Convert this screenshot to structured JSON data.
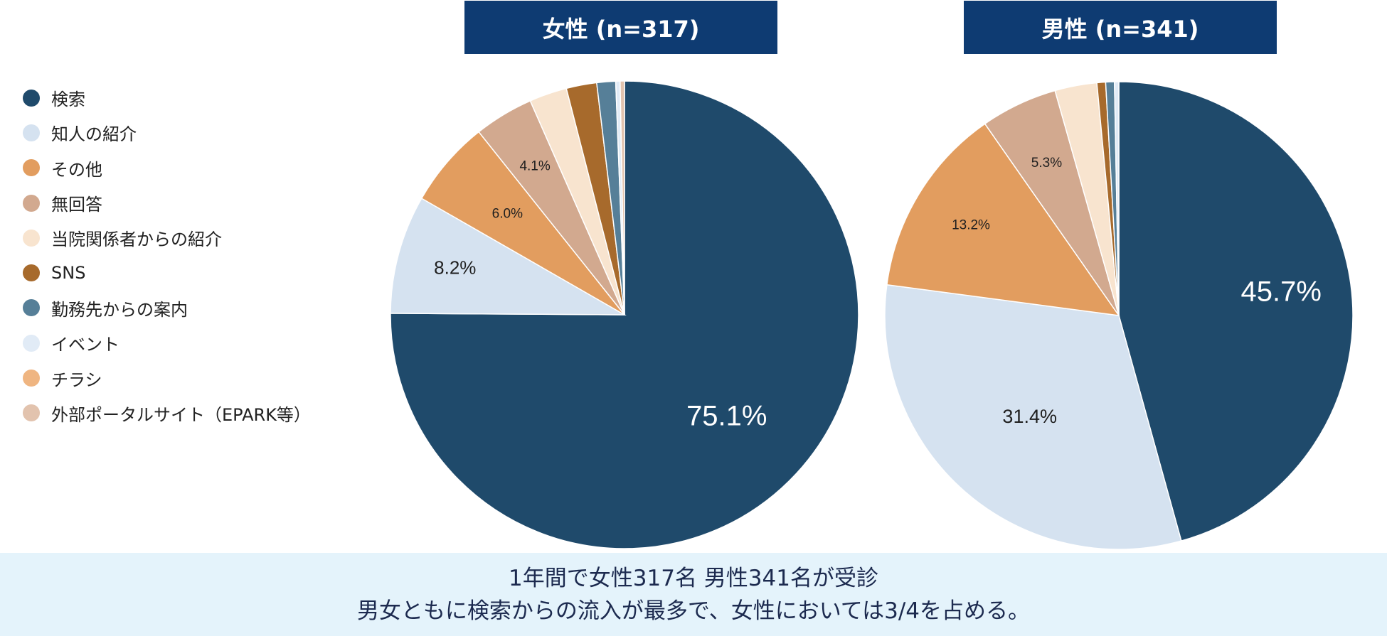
{
  "headers": {
    "female": "女性 (n=317)",
    "male": "男性 (n=341)"
  },
  "legend": [
    {
      "label": "検索",
      "color": "#1f4a6b"
    },
    {
      "label": "知人の紹介",
      "color": "#d5e2f0"
    },
    {
      "label": "その他",
      "color": "#e29d5f"
    },
    {
      "label": "無回答",
      "color": "#d2a98f"
    },
    {
      "label": "当院関係者からの紹介",
      "color": "#f8e4cf"
    },
    {
      "label": "SNS",
      "color": "#a76a2c"
    },
    {
      "label": "勤務先からの案内",
      "color": "#567f98"
    },
    {
      "label": "イベント",
      "color": "#e1ebf6"
    },
    {
      "label": "チラシ",
      "color": "#efb581"
    },
    {
      "label": "外部ポータルサイト（EPARK等）",
      "color": "#e2c3ae"
    }
  ],
  "chart_data": [
    {
      "type": "pie",
      "title": "女性 (n=317)",
      "categories": [
        "検索",
        "知人の紹介",
        "その他",
        "無回答",
        "当院関係者からの紹介",
        "SNS",
        "勤務先からの案内",
        "イベント",
        "チラシ",
        "外部ポータルサイト（EPARK等）"
      ],
      "values": [
        75.1,
        8.2,
        6.0,
        4.1,
        2.6,
        2.1,
        1.3,
        0.3,
        0.0,
        0.3
      ],
      "data_labels": [
        "75.1%",
        "8.2%",
        "6.0%",
        "4.1%",
        "",
        "",
        "",
        "",
        "",
        ""
      ]
    },
    {
      "type": "pie",
      "title": "男性 (n=341)",
      "categories": [
        "検索",
        "知人の紹介",
        "その他",
        "無回答",
        "当院関係者からの紹介",
        "SNS",
        "勤務先からの案内",
        "イベント",
        "チラシ",
        "外部ポータルサイト（EPARK等）"
      ],
      "values": [
        45.7,
        31.4,
        13.2,
        5.3,
        2.9,
        0.6,
        0.6,
        0.3,
        0.0,
        0.0
      ],
      "data_labels": [
        "45.7%",
        "31.4%",
        "13.2%",
        "5.3%",
        "",
        "",
        "",
        "",
        "",
        ""
      ]
    }
  ],
  "footer": {
    "line1": "1年間で女性317名 男性341名が受診",
    "line2": "男女ともに検索からの流入が最多で、女性においては3/4を占める。"
  }
}
